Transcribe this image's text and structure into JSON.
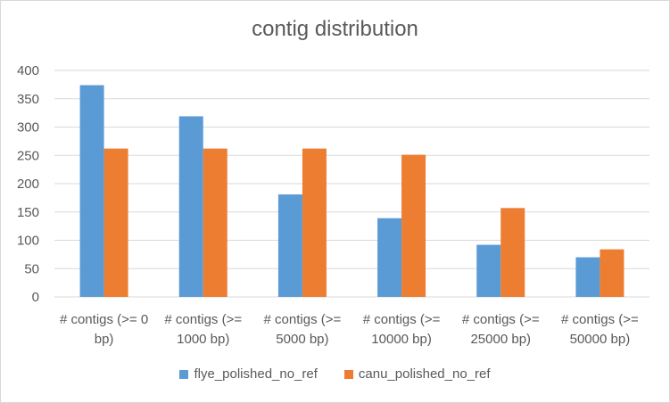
{
  "chart_data": {
    "type": "bar",
    "title": "contig distribution",
    "categories": [
      [
        "# contigs (>= 0",
        "bp)"
      ],
      [
        "# contigs (>=",
        "1000 bp)"
      ],
      [
        "# contigs (>=",
        "5000 bp)"
      ],
      [
        "# contigs (>=",
        "10000 bp)"
      ],
      [
        "# contigs (>=",
        "25000 bp)"
      ],
      [
        "# contigs (>=",
        "50000 bp)"
      ]
    ],
    "series": [
      {
        "name": "flye_polished_no_ref",
        "color": "#5b9bd5",
        "values": [
          374,
          319,
          181,
          139,
          92,
          70
        ]
      },
      {
        "name": "canu_polished_no_ref",
        "color": "#ed7d31",
        "values": [
          262,
          262,
          262,
          251,
          157,
          84
        ]
      }
    ],
    "ylim": [
      0,
      400
    ],
    "yticks": [
      0,
      50,
      100,
      150,
      200,
      250,
      300,
      350,
      400
    ],
    "xlabel": "",
    "ylabel": "",
    "grid": true,
    "legend_position": "bottom"
  }
}
